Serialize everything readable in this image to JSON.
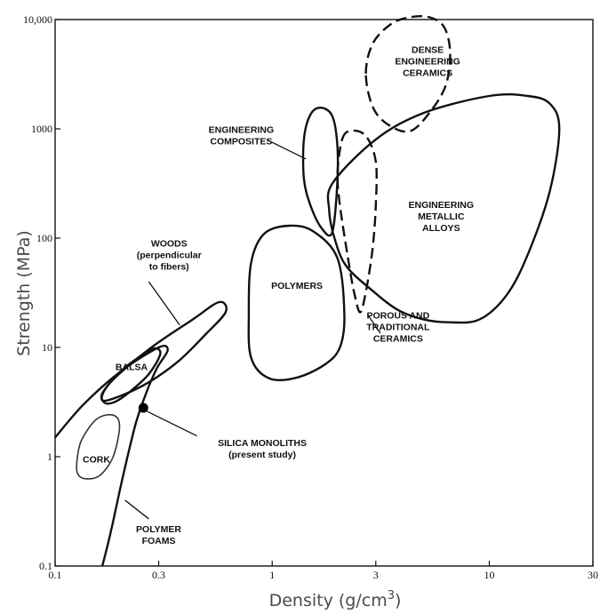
{
  "chart_data": {
    "type": "scatter",
    "x_scale": "log",
    "y_scale": "log",
    "xlim": [
      0.1,
      30
    ],
    "ylim": [
      0.1,
      10000
    ],
    "xlabel": "Density (g/cm",
    "xlabel_sup": "3",
    "xlabel_end": ")",
    "ylabel": "Strength (MPa)",
    "x_ticks": [
      {
        "value": 0.1,
        "label": "0.1"
      },
      {
        "value": 0.3,
        "label": "0.3"
      },
      {
        "value": 1,
        "label": "1"
      },
      {
        "value": 3,
        "label": "3"
      },
      {
        "value": 10,
        "label": "10"
      },
      {
        "value": 30,
        "label": "30"
      }
    ],
    "y_ticks": [
      {
        "value": 0.1,
        "label": "0.1"
      },
      {
        "value": 1,
        "label": "1"
      },
      {
        "value": 10,
        "label": "10"
      },
      {
        "value": 100,
        "label": "100"
      },
      {
        "value": 1000,
        "label": "1000"
      },
      {
        "value": 10000,
        "label": "10,000"
      }
    ],
    "grid": false,
    "regions": [
      {
        "name": "dense-engineering-ceramics",
        "style": "dashed",
        "label_lines": [
          "DENSE",
          "ENGINEERING",
          "CERAMICS"
        ],
        "label_at": [
          5.2,
          4200
        ],
        "outline": [
          [
            2.7,
            3200
          ],
          [
            2.9,
            6000
          ],
          [
            3.5,
            9000
          ],
          [
            4.3,
            10500
          ],
          [
            5.3,
            10500
          ],
          [
            6.2,
            8500
          ],
          [
            6.6,
            5000
          ],
          [
            6.3,
            2500
          ],
          [
            5.3,
            1400
          ],
          [
            4.3,
            950
          ],
          [
            3.4,
            1100
          ],
          [
            2.9,
            1600
          ]
        ]
      },
      {
        "name": "engineering-composites",
        "style": "solid",
        "label_lines": [
          "ENGINEERING",
          "COMPOSITES"
        ],
        "label_at": [
          0.72,
          880
        ],
        "leader": [
          [
            0.95,
            790
          ],
          [
            1.43,
            530
          ]
        ],
        "outline": [
          [
            1.4,
            800
          ],
          [
            1.5,
            1350
          ],
          [
            1.68,
            1560
          ],
          [
            1.9,
            1280
          ],
          [
            2.0,
            650
          ],
          [
            1.98,
            250
          ],
          [
            1.88,
            110
          ],
          [
            1.68,
            125
          ],
          [
            1.5,
            200
          ],
          [
            1.4,
            350
          ]
        ]
      },
      {
        "name": "porous-and-traditional-ceramics",
        "style": "dashed",
        "label_lines": [
          "POROUS AND",
          "TRADITIONAL",
          "CERAMICS"
        ],
        "label_at": [
          3.8,
          15.5
        ],
        "leader": [
          [
            2.75,
            20
          ],
          [
            3.15,
            13.5
          ]
        ],
        "outline": [
          [
            2.1,
            800
          ],
          [
            2.3,
            960
          ],
          [
            2.7,
            860
          ],
          [
            3.0,
            500
          ],
          [
            3.0,
            200
          ],
          [
            2.9,
            80
          ],
          [
            2.72,
            35
          ],
          [
            2.55,
            21
          ],
          [
            2.4,
            30
          ],
          [
            2.25,
            60
          ],
          [
            2.05,
            200
          ],
          [
            2.0,
            400
          ]
        ]
      },
      {
        "name": "engineering-metallic-alloys",
        "style": "solid",
        "label_lines": [
          "ENGINEERING",
          "METALLIC",
          "ALLOYS"
        ],
        "label_at": [
          6.0,
          160
        ],
        "outline": [
          [
            1.9,
            320
          ],
          [
            3.0,
            800
          ],
          [
            5.0,
            1400
          ],
          [
            10,
            2000
          ],
          [
            15,
            2000
          ],
          [
            19,
            1700
          ],
          [
            21,
            1000
          ],
          [
            19,
            270
          ],
          [
            15,
            70
          ],
          [
            12,
            30
          ],
          [
            9,
            18
          ],
          [
            6.5,
            17
          ],
          [
            5,
            18
          ],
          [
            3.8,
            22
          ],
          [
            2.9,
            33
          ],
          [
            2.2,
            55
          ],
          [
            1.95,
            95
          ],
          [
            1.83,
            180
          ]
        ]
      },
      {
        "name": "polymers",
        "style": "solid",
        "label_lines": [
          "POLYMERS"
        ],
        "label_at": [
          1.3,
          37
        ],
        "outline": [
          [
            0.8,
            60
          ],
          [
            0.92,
            110
          ],
          [
            1.2,
            130
          ],
          [
            1.55,
            115
          ],
          [
            2.0,
            65
          ],
          [
            2.15,
            20
          ],
          [
            2.05,
            10
          ],
          [
            1.75,
            7
          ],
          [
            1.3,
            5.3
          ],
          [
            0.97,
            5.2
          ],
          [
            0.8,
            8
          ],
          [
            0.78,
            20
          ]
        ]
      },
      {
        "name": "woods-perpendicular-to-fibers",
        "style": "solid",
        "label_lines": [
          "WOODS",
          "(perpendicular",
          "to fibers)"
        ],
        "label_at": [
          0.335,
          71
        ],
        "leader": [
          [
            0.27,
            40
          ],
          [
            0.375,
            16
          ]
        ],
        "outline": [
          [
            0.2,
            3.6
          ],
          [
            0.165,
            3.3
          ],
          [
            0.18,
            4.8
          ],
          [
            0.27,
            9.6
          ],
          [
            0.43,
            18
          ],
          [
            0.57,
            26
          ],
          [
            0.61,
            21
          ],
          [
            0.49,
            13
          ],
          [
            0.37,
            7.5
          ],
          [
            0.27,
            4.8
          ]
        ]
      },
      {
        "name": "balsa",
        "style": "solid",
        "label_lines": [
          "BALSA"
        ],
        "label_at": [
          0.225,
          6.7
        ],
        "outline": [
          [
            0.17,
            3.1
          ],
          [
            0.165,
            3.8
          ],
          [
            0.2,
            6
          ],
          [
            0.24,
            8
          ],
          [
            0.285,
            9.8
          ],
          [
            0.305,
            8.7
          ],
          [
            0.27,
            5.7
          ],
          [
            0.22,
            3.9
          ],
          [
            0.19,
            3.2
          ]
        ]
      },
      {
        "name": "cork",
        "style": "thin",
        "label_lines": [
          "CORK"
        ],
        "label_at": [
          0.155,
          0.95
        ],
        "outline": [
          [
            0.126,
            0.9
          ],
          [
            0.132,
            1.4
          ],
          [
            0.155,
            2.2
          ],
          [
            0.185,
            2.4
          ],
          [
            0.198,
            1.9
          ],
          [
            0.185,
            1.0
          ],
          [
            0.16,
            0.67
          ],
          [
            0.137,
            0.63
          ],
          [
            0.127,
            0.7
          ]
        ]
      },
      {
        "name": "polymer-foams",
        "style": "solid",
        "label_lines": [
          "POLYMER",
          "FOAMS"
        ],
        "label_at": [
          0.3,
          0.195
        ],
        "leader": [
          [
            0.21,
            0.4
          ],
          [
            0.27,
            0.27
          ]
        ],
        "polyline": [
          [
            0.1,
            1.5
          ],
          [
            0.135,
            3.0
          ],
          [
            0.2,
            6.0
          ],
          [
            0.3,
            10.0
          ],
          [
            0.33,
            9.4
          ],
          [
            0.295,
            6.5
          ],
          [
            0.265,
            4.0
          ],
          [
            0.235,
            2.0
          ],
          [
            0.205,
            0.65
          ],
          [
            0.18,
            0.2
          ],
          [
            0.165,
            0.1
          ]
        ]
      }
    ],
    "points": [
      {
        "name": "silica-monoliths",
        "x": 0.255,
        "y": 2.8,
        "label_lines": [
          "SILICA MONOLITHS",
          "(present study)"
        ],
        "label_at": [
          0.9,
          1.2
        ],
        "leader": [
          [
            0.265,
            2.6
          ],
          [
            0.45,
            1.55
          ]
        ]
      }
    ]
  }
}
